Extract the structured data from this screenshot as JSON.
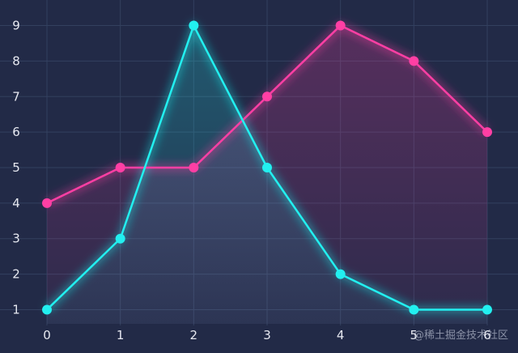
{
  "chart_data": {
    "type": "line",
    "x": [
      0,
      1,
      2,
      3,
      4,
      5,
      6
    ],
    "xlim": [
      0,
      6
    ],
    "ylim": [
      0.6,
      9.4
    ],
    "y_ticks": [
      1,
      2,
      3,
      4,
      5,
      6,
      7,
      8,
      9
    ],
    "grid": true,
    "smooth": false,
    "area_fill": true,
    "series": [
      {
        "values": [
          4,
          5,
          5,
          7,
          9,
          8,
          6
        ],
        "color": "#ff3fa4"
      },
      {
        "values": [
          1,
          3,
          9,
          5,
          2,
          1,
          1
        ],
        "color": "#22f0f0"
      }
    ]
  },
  "watermark": "@稀土掘金技术社区"
}
